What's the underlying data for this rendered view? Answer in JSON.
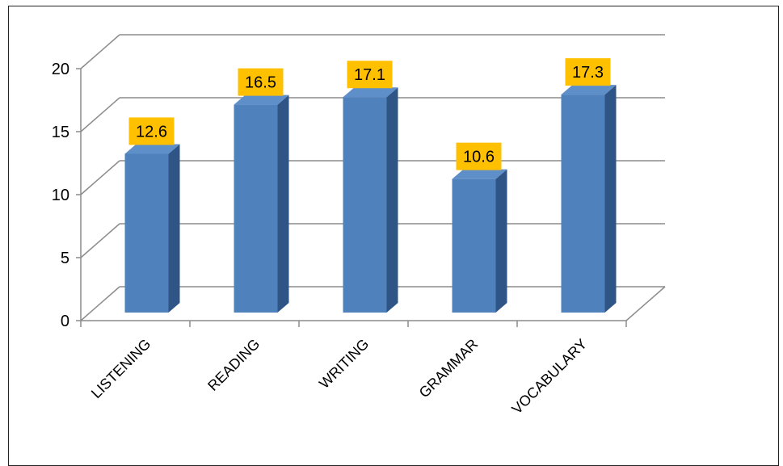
{
  "chart_data": {
    "type": "bar",
    "categories": [
      "LISTENING",
      "READING",
      "WRITING",
      "GRAMMAR",
      "VOCABULARY"
    ],
    "values": [
      12.6,
      16.5,
      17.1,
      10.6,
      17.3
    ],
    "data_labels": [
      "12.6",
      "16.5",
      "17.1",
      "10.6",
      "17.3"
    ],
    "y_ticks": [
      "0",
      "5",
      "10",
      "15",
      "20"
    ],
    "ylim": [
      0,
      20
    ],
    "title": "",
    "xlabel": "",
    "ylabel": "",
    "grid": true,
    "legend": "none",
    "style": "3d-column",
    "colors": {
      "bar_front": "#4F81BD",
      "bar_side": "#2F5586",
      "bar_top": "#5F8FC9",
      "label_bg": "#FFC000",
      "gridline": "#8C8C8C",
      "axis": "#8C8C8C"
    }
  }
}
